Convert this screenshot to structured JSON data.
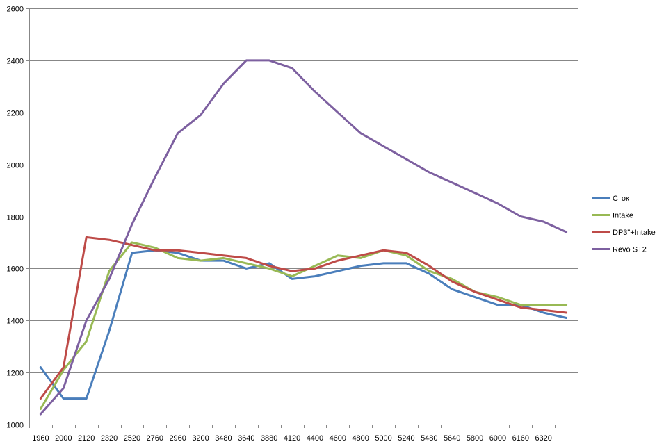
{
  "chart_data": {
    "type": "line",
    "title": "",
    "xlabel": "",
    "ylabel": "",
    "ylim": [
      1000,
      2600
    ],
    "yticks": [
      1000,
      1200,
      1400,
      1600,
      1800,
      2000,
      2200,
      2400,
      2600
    ],
    "grid": "horizontal",
    "legend_position": "right",
    "x": [
      "1960",
      "2000",
      "2120",
      "2320",
      "2520",
      "2760",
      "2960",
      "3200",
      "3480",
      "3640",
      "3880",
      "4120",
      "4400",
      "4600",
      "4800",
      "5000",
      "5240",
      "5480",
      "5640",
      "5800",
      "6000",
      "6160",
      "6320",
      ""
    ],
    "series": [
      {
        "name": "Сток",
        "color": "#4a7ebb",
        "values": [
          1220,
          1100,
          1100,
          1360,
          1660,
          1670,
          1660,
          1630,
          1630,
          1600,
          1620,
          1560,
          1570,
          1590,
          1610,
          1620,
          1620,
          1580,
          1520,
          1490,
          1460,
          1460,
          1430,
          1410
        ]
      },
      {
        "name": "Intake",
        "color": "#98b954",
        "values": [
          1060,
          1210,
          1320,
          1590,
          1700,
          1680,
          1640,
          1630,
          1640,
          1620,
          1600,
          1570,
          1610,
          1650,
          1640,
          1670,
          1650,
          1590,
          1560,
          1510,
          1490,
          1460,
          1460,
          1460
        ]
      },
      {
        "name": "DP3\"+Intake",
        "color": "#be4b48",
        "values": [
          1100,
          1220,
          1720,
          1710,
          1690,
          1670,
          1670,
          1660,
          1650,
          1640,
          1610,
          1590,
          1600,
          1630,
          1650,
          1670,
          1660,
          1610,
          1550,
          1510,
          1480,
          1450,
          1440,
          1430
        ]
      },
      {
        "name": "Revo ST2",
        "color": "#7d60a0",
        "values": [
          1040,
          1140,
          1400,
          1560,
          1770,
          1950,
          2120,
          2190,
          2310,
          2400,
          2400,
          2370,
          2280,
          2200,
          2120,
          2070,
          2020,
          1970,
          1930,
          1890,
          1850,
          1800,
          1780,
          1740
        ]
      }
    ]
  }
}
